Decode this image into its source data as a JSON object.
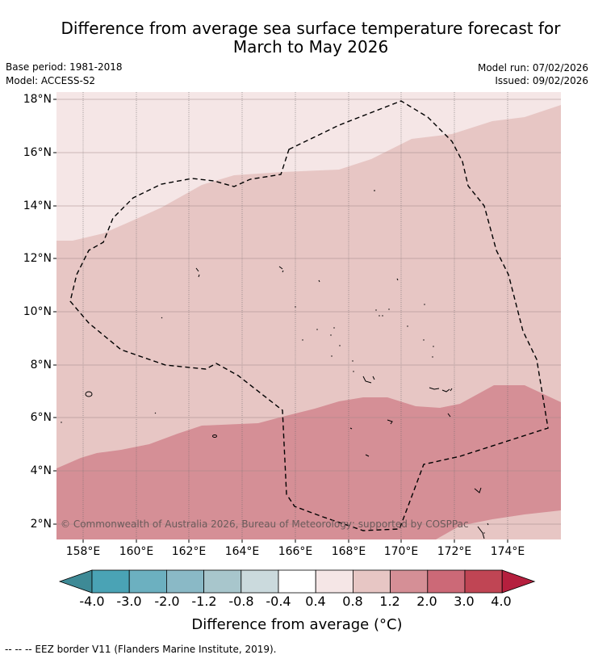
{
  "title_line1": "Difference from average sea surface temperature forecast for",
  "title_line2": "March to May 2026",
  "meta": {
    "base_period": "Base period: 1981-2018",
    "model": "Model: ACCESS-S2",
    "model_run": "Model run: 07/02/2026",
    "issued": "Issued: 09/02/2026"
  },
  "map": {
    "lat_labels": [
      "18°N",
      "16°N",
      "14°N",
      "12°N",
      "10°N",
      "8°N",
      "6°N",
      "4°N",
      "2°N"
    ],
    "lon_labels": [
      "158°E",
      "160°E",
      "162°E",
      "164°E",
      "166°E",
      "168°E",
      "170°E",
      "172°E",
      "174°E"
    ],
    "copyright": "© Commonwealth of Australia 2026, Bureau of Meteorology; supported by COSPPac",
    "icons": [
      "eez-border-line",
      "island-outline"
    ]
  },
  "colorbar": {
    "labels": [
      "-4.0",
      "-3.0",
      "-2.0",
      "-1.2",
      "-0.8",
      "-0.4",
      "0.4",
      "0.8",
      "1.2",
      "2.0",
      "3.0",
      "4.0"
    ],
    "colors": [
      "#3e8a96",
      "#4aa3b5",
      "#6cb0c0",
      "#8ab9c6",
      "#a8c6cc",
      "#cbdadd",
      "#ffffff",
      "#f5e6e6",
      "#e7c6c4",
      "#d58f96",
      "#cc6977",
      "#c04554",
      "#b51f3e"
    ],
    "title": "Difference from average (°C)"
  },
  "footer": "--  --  -- EEZ border V11 (Flanders Marine Institute, 2019)."
}
